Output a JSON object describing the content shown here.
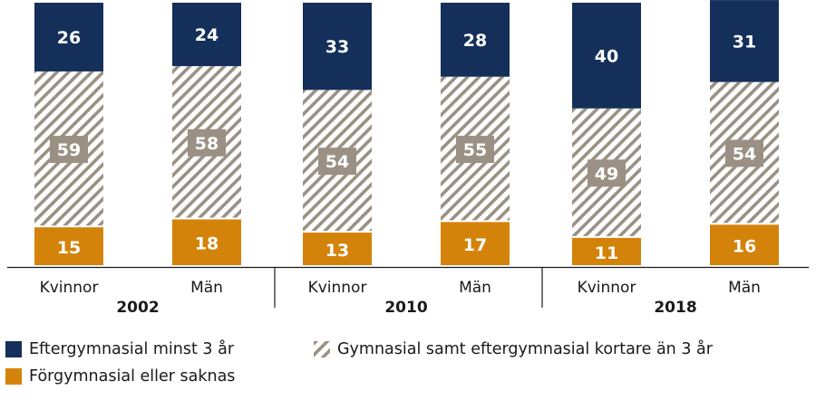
{
  "chart_data": {
    "type": "stacked-bar",
    "groups": [
      {
        "label": "2002",
        "bars": [
          "Kvinnor",
          "Män"
        ]
      },
      {
        "label": "2010",
        "bars": [
          "Kvinnor",
          "Män"
        ]
      },
      {
        "label": "2018",
        "bars": [
          "Kvinnor",
          "Män"
        ]
      }
    ],
    "categories": [
      "Kvinnor",
      "Män",
      "Kvinnor",
      "Män",
      "Kvinnor",
      "Män"
    ],
    "series": [
      {
        "name": "Förgymnasial eller saknas",
        "color": "#d4830a",
        "pattern": "solid",
        "values": [
          15,
          18,
          13,
          17,
          11,
          16
        ]
      },
      {
        "name": "Gymnasial samt eftergymnasial kortare än 3 år",
        "color": "#9a9184",
        "pattern": "hatched",
        "values": [
          59,
          58,
          54,
          55,
          49,
          54
        ]
      },
      {
        "name": "Eftergymnasial minst 3 år",
        "color": "#14305a",
        "pattern": "solid",
        "values": [
          26,
          24,
          33,
          28,
          40,
          31
        ]
      }
    ],
    "ylim": [
      0,
      100
    ],
    "legend": [
      {
        "name": "Eftergymnasial minst 3 år",
        "color": "#14305a",
        "pattern": "solid"
      },
      {
        "name": "Gymnasial samt eftergymnasial kortare än 3 år",
        "color": "#9a9184",
        "pattern": "hatched"
      },
      {
        "name": "Förgymnasial eller saknas",
        "color": "#d4830a",
        "pattern": "solid"
      }
    ],
    "legend_position": "bottom"
  }
}
